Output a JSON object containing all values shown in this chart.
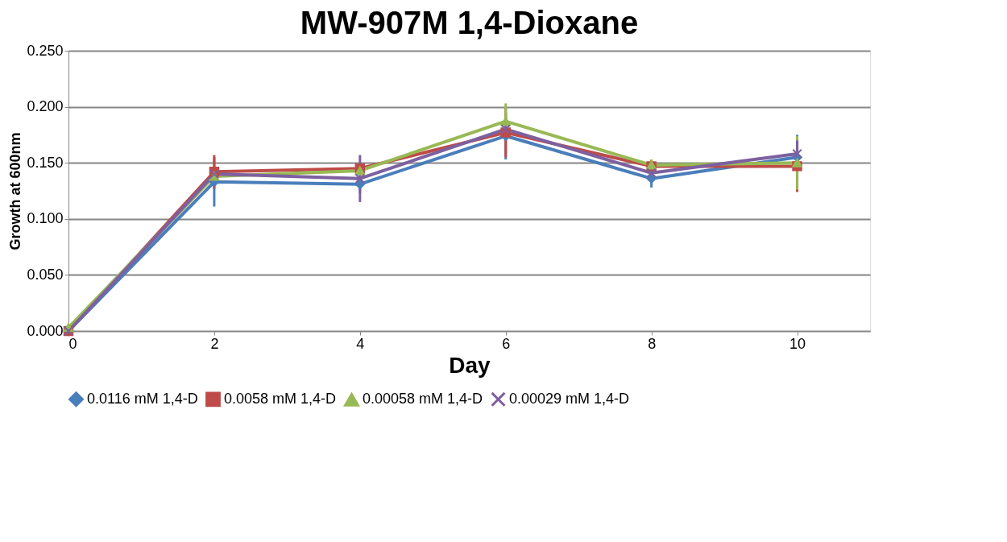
{
  "chart_data": {
    "type": "line",
    "title": "MW-907M 1,4-Dioxane",
    "xlabel": "Day",
    "ylabel": "Growth at 600nm",
    "x": [
      0,
      2,
      4,
      6,
      8,
      10
    ],
    "series": [
      {
        "name": "0.0116 mM 1,4-D",
        "color": "#4a7ebb",
        "marker": "diamond",
        "values": [
          0,
          0.133,
          0.131,
          0.174,
          0.136,
          0.155
        ],
        "errors": [
          null,
          0.022,
          0.008,
          0.021,
          0.008,
          0.02
        ]
      },
      {
        "name": "0.0058 mM 1,4-D",
        "color": "#be4b48",
        "marker": "square",
        "values": [
          0,
          0.142,
          0.145,
          0.177,
          0.147,
          0.147
        ],
        "errors": [
          null,
          0.015,
          null,
          0.022,
          0.006,
          0.023
        ]
      },
      {
        "name": "0.00058 mM 1,4-D",
        "color": "#98b954",
        "marker": "triangle",
        "values": [
          0.003,
          0.138,
          0.143,
          0.187,
          0.148,
          0.15
        ],
        "errors": [
          null,
          null,
          null,
          0.016,
          0.005,
          0.024
        ]
      },
      {
        "name": "0.00029 mM 1,4-D",
        "color": "#7d60a0",
        "marker": "cross",
        "values": [
          0,
          0.14,
          0.136,
          0.18,
          0.141,
          0.158
        ],
        "errors": [
          null,
          null,
          0.021,
          0.01,
          null,
          0.012
        ]
      }
    ],
    "xlim": [
      0,
      11
    ],
    "xticks": [
      0,
      2,
      4,
      6,
      8,
      10
    ],
    "ylim": [
      0,
      0.25
    ],
    "yticks": [
      {
        "value": 0,
        "label": "0.000"
      },
      {
        "value": 0.05,
        "label": "0.050"
      },
      {
        "value": 0.1,
        "label": "0.100"
      },
      {
        "value": 0.15,
        "label": "0.150"
      },
      {
        "value": 0.2,
        "label": "0.200"
      },
      {
        "value": 0.25,
        "label": "0.250"
      }
    ],
    "grid": "y",
    "legend": "bottom",
    "line_style": "solid"
  }
}
